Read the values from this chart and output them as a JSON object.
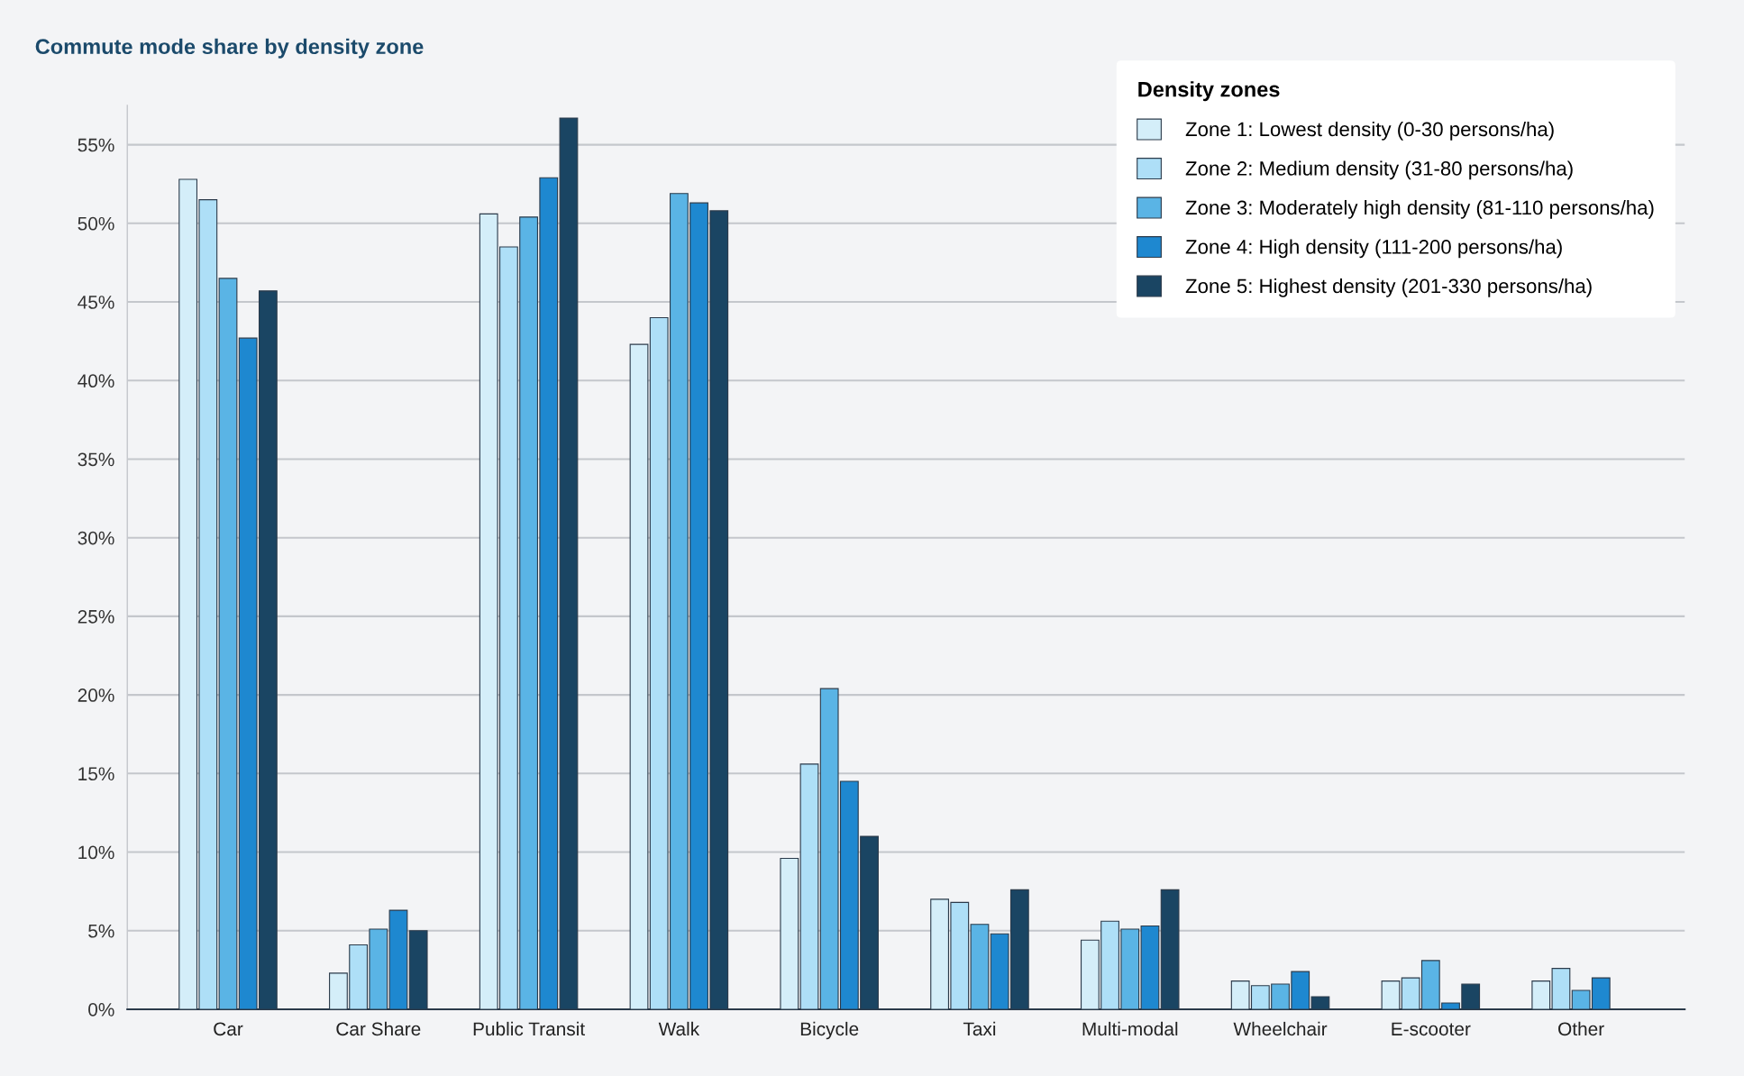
{
  "chart_data": {
    "type": "bar",
    "title": "Commute mode share by density zone",
    "categories": [
      "Car",
      "Car Share",
      "Public Transit",
      "Walk",
      "Bicycle",
      "Taxi",
      "Multi-modal",
      "Wheelchair",
      "E-scooter",
      "Other"
    ],
    "series": [
      {
        "name": "Zone 1: Lowest density (0-30 persons/ha)",
        "color": "#d4eef9",
        "values": [
          52.8,
          2.3,
          50.6,
          42.3,
          9.6,
          7.0,
          4.4,
          1.8,
          1.8,
          1.8
        ]
      },
      {
        "name": "Zone 2: Medium density (31-80 persons/ha)",
        "color": "#aedff7",
        "values": [
          51.5,
          4.1,
          48.5,
          44.0,
          15.6,
          6.8,
          5.6,
          1.5,
          2.0,
          2.6
        ]
      },
      {
        "name": "Zone 3: Moderately high density (81-110 persons/ha)",
        "color": "#5ab4e5",
        "values": [
          46.5,
          5.1,
          50.4,
          51.9,
          20.4,
          5.4,
          5.1,
          1.6,
          3.1,
          1.2
        ]
      },
      {
        "name": "Zone 4: High density (111-200 persons/ha)",
        "color": "#1e88d0",
        "values": [
          42.7,
          6.3,
          52.9,
          51.3,
          14.5,
          4.8,
          5.3,
          2.4,
          0.4,
          2.0
        ]
      },
      {
        "name": "Zone 5: Highest density (201-330 persons/ha)",
        "color": "#1a4563",
        "values": [
          45.7,
          5.0,
          56.7,
          50.8,
          11.0,
          7.6,
          7.6,
          0.8,
          1.6,
          null
        ]
      }
    ],
    "legend_title": "Density zones",
    "legend": "top right",
    "grid": "y",
    "ylim": [
      0,
      57.5
    ],
    "yticks": [
      {
        "value": 0,
        "label": "0%"
      },
      {
        "value": 5,
        "label": "5%"
      },
      {
        "value": 10,
        "label": "10%"
      },
      {
        "value": 15,
        "label": "15%"
      },
      {
        "value": 20,
        "label": "20%"
      },
      {
        "value": 25,
        "label": "25%"
      },
      {
        "value": 30,
        "label": "30%"
      },
      {
        "value": 35,
        "label": "35%"
      },
      {
        "value": 40,
        "label": "40%"
      },
      {
        "value": 45,
        "label": "45%"
      },
      {
        "value": 50,
        "label": "50%"
      },
      {
        "value": 55,
        "label": "55%"
      }
    ]
  }
}
